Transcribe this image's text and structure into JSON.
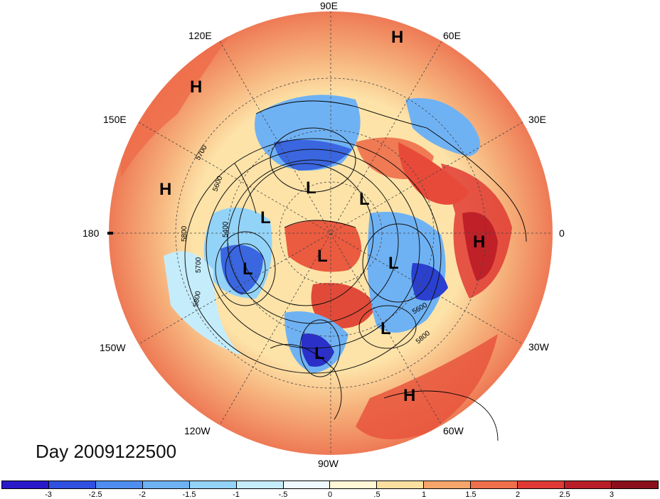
{
  "map": {
    "longitude_labels": {
      "e90": "90E",
      "e60": "60E",
      "e30": "30E",
      "zero": "0",
      "w30": "30W",
      "w60": "60W",
      "w90": "90W",
      "w120": "120W",
      "w150": "150W",
      "e180": "180",
      "e150": "150E",
      "e120": "120E"
    },
    "pressure_centers": [
      {
        "label": "H",
        "name": "high-60e"
      },
      {
        "label": "H",
        "name": "high-120e"
      },
      {
        "label": "H",
        "name": "high-160e"
      },
      {
        "label": "H",
        "name": "high-africa"
      },
      {
        "label": "H",
        "name": "high-atlantic"
      },
      {
        "label": "L",
        "name": "low-siberia"
      },
      {
        "label": "L",
        "name": "low-eastasia"
      },
      {
        "label": "L",
        "name": "low-pacific"
      },
      {
        "label": "L",
        "name": "low-pole"
      },
      {
        "label": "L",
        "name": "low-europe"
      },
      {
        "label": "L",
        "name": "low-scandinavia"
      },
      {
        "label": "L",
        "name": "low-atlantic"
      },
      {
        "label": "L",
        "name": "low-usa"
      }
    ],
    "contour_labels": [
      "5700",
      "5600",
      "5800",
      "5400",
      "5700",
      "5800",
      "5600",
      "5800"
    ]
  },
  "date_label": "Day 2009122500",
  "colorbar": {
    "ticks": [
      "-3",
      "-2.5",
      "-2",
      "-1.5",
      "-1",
      "-.5",
      "0",
      ".5",
      "1",
      "1.5",
      "2",
      "2.5",
      "3"
    ],
    "colors": [
      "#2a19c8",
      "#3050e0",
      "#4f8ef0",
      "#6fb2f4",
      "#93d3f8",
      "#c5ecfb",
      "#eef9ff",
      "#fff7d6",
      "#fde0a0",
      "#f7a56a",
      "#ef6e4b",
      "#df3a35",
      "#b81e27",
      "#8c0f1c"
    ]
  }
}
